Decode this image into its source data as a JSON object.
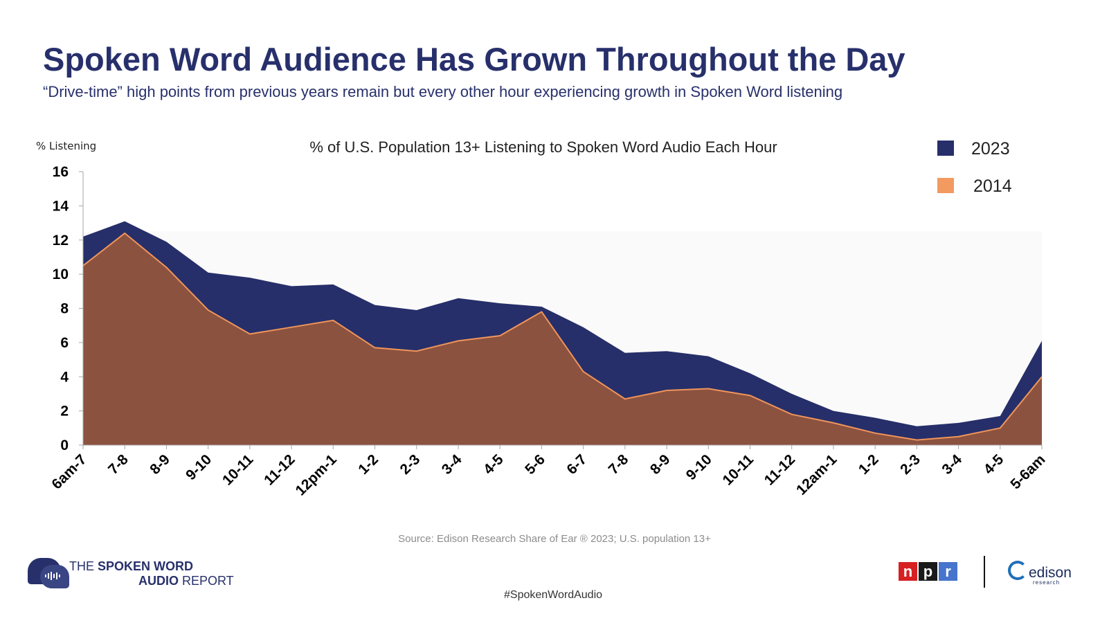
{
  "header": {
    "title": "Spoken Word Audience Has Grown Throughout the Day",
    "subtitle": "“Drive-time” high points from previous years remain but every other hour experiencing growth in Spoken Word listening"
  },
  "chart_data": {
    "type": "area",
    "title": "% of U.S. Population 13+ Listening to Spoken Word Audio Each Hour",
    "ylabel": "% Listening",
    "xlabel": "",
    "ylim": [
      0,
      16
    ],
    "yticks": [
      0,
      2,
      4,
      6,
      8,
      10,
      12,
      14,
      16
    ],
    "grid": false,
    "legend_position": "top-right",
    "categories": [
      "6am-7",
      "7-8",
      "8-9",
      "9-10",
      "10-11",
      "11-12",
      "12pm-1",
      "1-2",
      "2-3",
      "3-4",
      "4-5",
      "5-6",
      "6-7",
      "7-8",
      "8-9",
      "9-10",
      "10-11",
      "11-12",
      "12am-1",
      "1-2",
      "2-3",
      "3-4",
      "4-5",
      "5-6am"
    ],
    "series": [
      {
        "name": "2023",
        "color": "#262f6a",
        "values": [
          12.2,
          13.1,
          11.9,
          10.1,
          9.8,
          9.3,
          9.4,
          8.2,
          7.9,
          8.6,
          8.3,
          8.1,
          6.9,
          5.4,
          5.5,
          5.2,
          4.2,
          3.0,
          2.0,
          1.6,
          1.1,
          1.3,
          1.7,
          6.1
        ]
      },
      {
        "name": "2014",
        "color": "#8c5240",
        "line_color": "#f0955a",
        "legend_color": "#f29a60",
        "values": [
          10.5,
          12.4,
          10.4,
          7.9,
          6.5,
          6.9,
          7.3,
          5.7,
          5.5,
          6.1,
          6.4,
          7.8,
          4.3,
          2.7,
          3.2,
          3.3,
          2.9,
          1.8,
          1.3,
          0.7,
          0.3,
          0.5,
          1.0,
          4.0
        ]
      }
    ]
  },
  "footer": {
    "source": "Source: Edison Research Share of Ear ® 2023; U.S. population 13+",
    "hashtag": "#SpokenWordAudio",
    "report_logo": {
      "line1_prefix": "THE ",
      "line1_bold": "SPOKEN WORD",
      "line2_bold": "AUDIO",
      "line2_suffix": " REPORT",
      "icon": "speech-bubble-waveform-icon"
    },
    "npr_logo": {
      "letters": [
        "n",
        "p",
        "r"
      ],
      "colors": [
        "#d62021",
        "#1a1a1a",
        "#4774cc"
      ]
    },
    "edison_logo": {
      "word": "edison",
      "sub": "research",
      "color": "#1f6fb8"
    }
  }
}
